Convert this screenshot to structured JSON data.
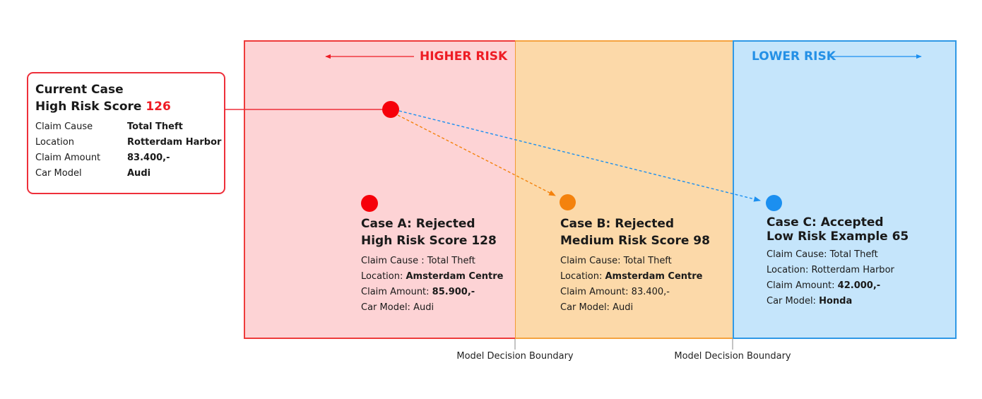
{
  "risk_labels": {
    "higher": "HIGHER RISK",
    "lower": "LOWER RISK"
  },
  "current_case": {
    "title": "Current Case",
    "score_label": "High Risk Score",
    "score": "126",
    "rows": [
      {
        "key": "Claim Cause",
        "value": "Total Theft"
      },
      {
        "key": "Location",
        "value": "Rotterdam Harbor"
      },
      {
        "key": "Claim Amount",
        "value": "83.400,-"
      },
      {
        "key": "Car Model",
        "value": "Audi"
      }
    ]
  },
  "cases": {
    "a": {
      "title_line1": "Case A: Rejected",
      "title_line2": "High Risk Score 128",
      "cause_label": "Claim Cause : ",
      "cause": "Total Theft",
      "location_label": "Location: ",
      "location": "Amsterdam Centre",
      "amount_label": "Claim Amount: ",
      "amount": "85.900,-",
      "model_label": "Car Model: ",
      "model": "Audi"
    },
    "b": {
      "title_line1": "Case B: Rejected",
      "title_line2": "Medium Risk Score 98",
      "cause_label": "Claim Cause: ",
      "cause": "Total Theft",
      "location_label": "Location: ",
      "location": "Amsterdam Centre",
      "amount_label": "Claim Amount: ",
      "amount": "83.400,-",
      "model_label": "Car Model: ",
      "model": "Audi"
    },
    "c": {
      "title_line1": "Case C: Accepted",
      "title_line2": "Low Risk Example 65",
      "cause_label": "Claim Cause: ",
      "cause": "Total Theft",
      "location_label": "Location: ",
      "location": "Rotterdam Harbor",
      "amount_label": "Claim Amount: ",
      "amount": "42.000,-",
      "model_label": "Car Model: ",
      "model": "Honda"
    }
  },
  "boundaries": [
    "Model Decision Boundary",
    "Model Decision Boundary"
  ],
  "colors": {
    "high": "#ee1c24",
    "medium": "#f4820d",
    "low": "#1b8ff0"
  }
}
